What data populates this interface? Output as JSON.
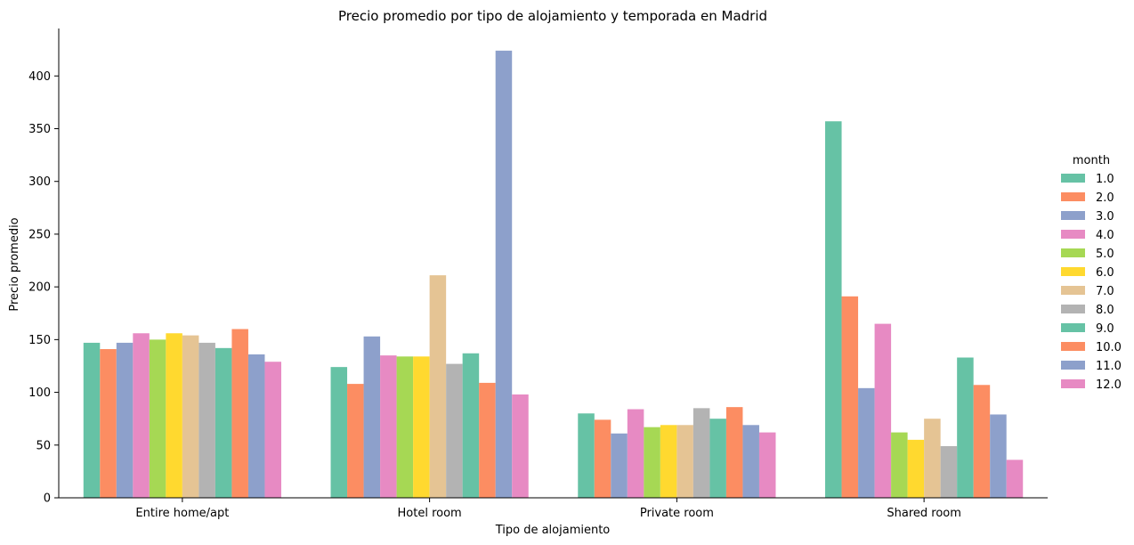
{
  "chart_data": {
    "type": "bar",
    "title": "Precio promedio por tipo de alojamiento y temporada en Madrid",
    "xlabel": "Tipo de alojamiento",
    "ylabel": "Precio promedio",
    "ylim": [
      0,
      445
    ],
    "yticks": [
      0,
      50,
      100,
      150,
      200,
      250,
      300,
      350,
      400
    ],
    "grid": false,
    "legend": {
      "title": "month",
      "placement": "right"
    },
    "categories": [
      "Entire home/apt",
      "Hotel room",
      "Private room",
      "Shared room"
    ],
    "series": [
      {
        "name": "1.0",
        "color": "#66c2a5",
        "values": [
          147,
          124,
          80,
          357
        ]
      },
      {
        "name": "2.0",
        "color": "#fc8d62",
        "values": [
          141,
          108,
          74,
          191
        ]
      },
      {
        "name": "3.0",
        "color": "#8da0cb",
        "values": [
          147,
          153,
          61,
          104
        ]
      },
      {
        "name": "4.0",
        "color": "#e78ac3",
        "values": [
          156,
          135,
          84,
          165
        ]
      },
      {
        "name": "5.0",
        "color": "#a6d854",
        "values": [
          150,
          134,
          67,
          62
        ]
      },
      {
        "name": "6.0",
        "color": "#ffd92f",
        "values": [
          156,
          134,
          69,
          55
        ]
      },
      {
        "name": "7.0",
        "color": "#e5c494",
        "values": [
          154,
          211,
          69,
          75
        ]
      },
      {
        "name": "8.0",
        "color": "#b3b3b3",
        "values": [
          147,
          127,
          85,
          49
        ]
      },
      {
        "name": "9.0",
        "color": "#66c2a5",
        "values": [
          142,
          137,
          75,
          133
        ]
      },
      {
        "name": "10.0",
        "color": "#fc8d62",
        "values": [
          160,
          109,
          86,
          107
        ]
      },
      {
        "name": "11.0",
        "color": "#8da0cb",
        "values": [
          136,
          424,
          69,
          79
        ]
      },
      {
        "name": "12.0",
        "color": "#e78ac3",
        "values": [
          129,
          98,
          62,
          36
        ]
      }
    ]
  }
}
